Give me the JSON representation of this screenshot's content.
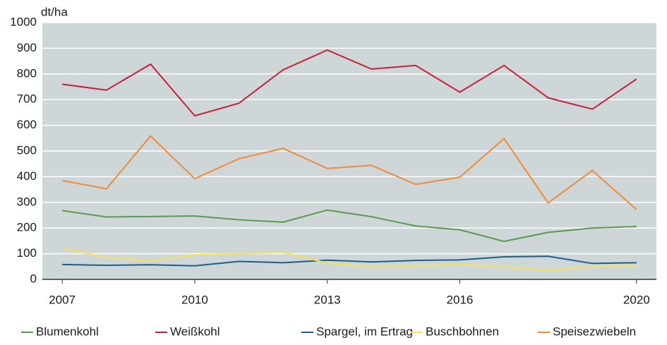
{
  "chart_data": {
    "type": "line",
    "y_unit": "dt/ha",
    "x": [
      2007,
      2008,
      2009,
      2010,
      2011,
      2012,
      2013,
      2014,
      2015,
      2016,
      2017,
      2018,
      2019,
      2020
    ],
    "xlim": [
      2006.55,
      2020.45
    ],
    "xticks": [
      2007,
      2010,
      2013,
      2016,
      2020
    ],
    "ylim": [
      0,
      1000
    ],
    "yticks": [
      0,
      100,
      200,
      300,
      400,
      500,
      600,
      700,
      800,
      900,
      1000
    ],
    "grid": true,
    "legend": "bottom",
    "series": [
      {
        "name": "Blumenkohl",
        "color": "#5a9a50",
        "values": [
          268,
          243,
          245,
          247,
          232,
          223,
          270,
          244,
          208,
          193,
          148,
          183,
          200,
          206
        ]
      },
      {
        "name": "Weißkohl",
        "color": "#c8203a",
        "values": [
          760,
          737,
          838,
          637,
          686,
          816,
          893,
          819,
          833,
          729,
          833,
          707,
          663,
          780
        ]
      },
      {
        "name": "Spargel, im Ertrag",
        "color": "#1a5e8c",
        "values": [
          58,
          55,
          57,
          53,
          70,
          65,
          75,
          68,
          74,
          76,
          88,
          90,
          62,
          65
        ]
      },
      {
        "name": "Buschbohnen",
        "color": "#f5e25a",
        "values": [
          122,
          85,
          72,
          96,
          100,
          105,
          64,
          50,
          53,
          60,
          48,
          35,
          50,
          53
        ]
      },
      {
        "name": "Speisezwiebeln",
        "color": "#ec8c3c",
        "values": [
          385,
          353,
          558,
          392,
          470,
          510,
          432,
          444,
          370,
          398,
          548,
          298,
          424,
          272
        ]
      }
    ]
  }
}
